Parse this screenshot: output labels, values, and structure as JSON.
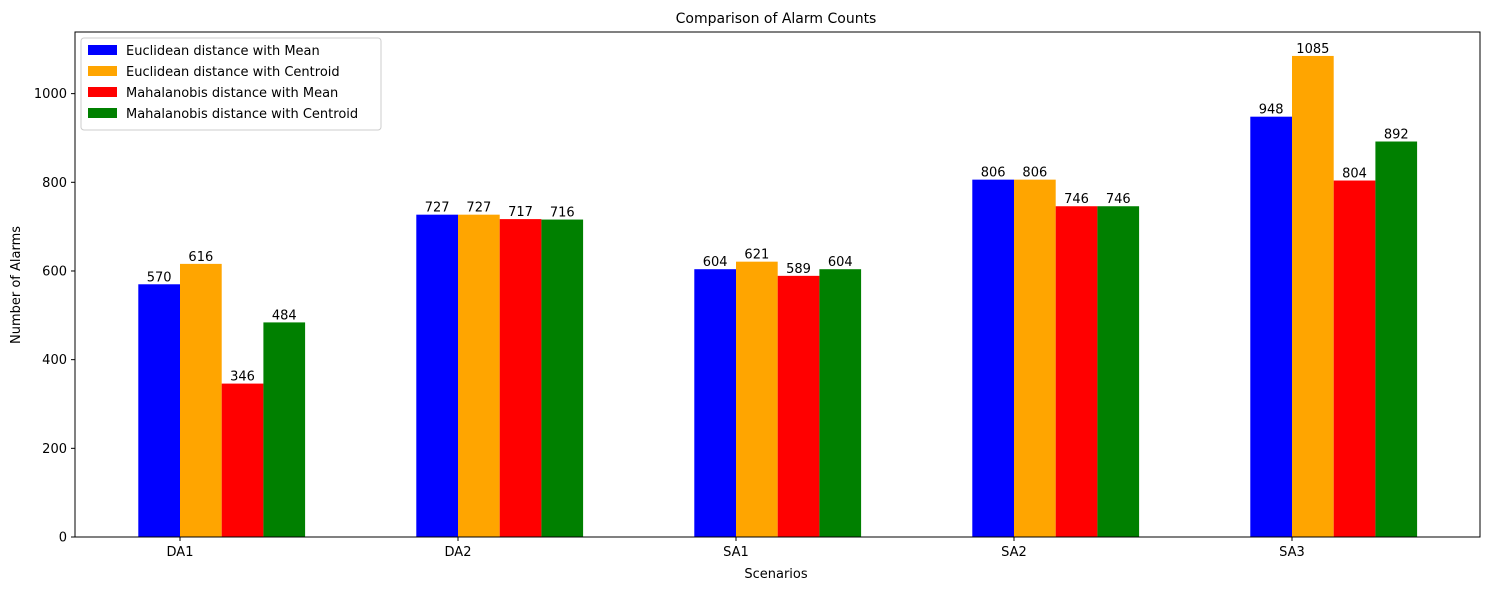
{
  "chart_data": {
    "type": "bar",
    "title": "Comparison of Alarm Counts",
    "xlabel": "Scenarios",
    "ylabel": "Number of Alarms",
    "categories": [
      "DA1",
      "DA2",
      "SA1",
      "SA2",
      "SA3"
    ],
    "series": [
      {
        "name": "Euclidean distance with Mean",
        "color": "#0000ff",
        "values": [
          570,
          727,
          604,
          806,
          948
        ]
      },
      {
        "name": "Euclidean distance with Centroid",
        "color": "#ffa500",
        "values": [
          616,
          727,
          621,
          806,
          1085
        ]
      },
      {
        "name": "Mahalanobis distance with Mean",
        "color": "#ff0000",
        "values": [
          346,
          717,
          589,
          746,
          804
        ]
      },
      {
        "name": "Mahalanobis distance with Centroid",
        "color": "#008000",
        "values": [
          484,
          716,
          604,
          746,
          892
        ]
      }
    ],
    "ylim": [
      0,
      1139
    ],
    "yticks": [
      0,
      200,
      400,
      600,
      800,
      1000
    ],
    "grid": false,
    "legend_position": "top-left",
    "data_labels": true
  }
}
